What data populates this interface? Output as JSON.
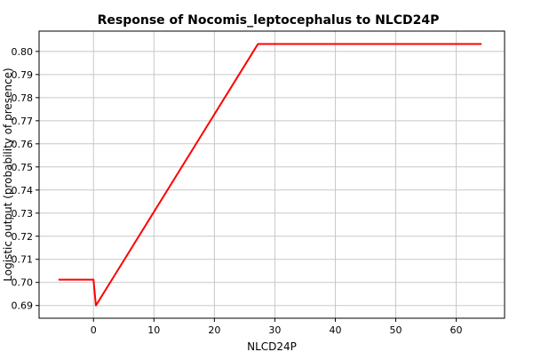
{
  "chart_data": {
    "type": "line",
    "title": "Response of Nocomis_leptocephalus to NLCD24P",
    "xlabel": "NLCD24P",
    "ylabel": "Logistic output (probability of presence)",
    "xlim": [
      -9,
      68
    ],
    "ylim": [
      0.6845,
      0.8088
    ],
    "grid": true,
    "x_ticks": [
      0,
      10,
      20,
      30,
      40,
      50,
      60
    ],
    "y_ticks": [
      0.69,
      0.7,
      0.71,
      0.72,
      0.73,
      0.74,
      0.75,
      0.76,
      0.77,
      0.78,
      0.79,
      0.8
    ],
    "x_tick_labels": [
      "0",
      "10",
      "20",
      "30",
      "40",
      "50",
      "60"
    ],
    "y_tick_labels": [
      "0.69",
      "0.70",
      "0.71",
      "0.72",
      "0.73",
      "0.74",
      "0.75",
      "0.76",
      "0.77",
      "0.78",
      "0.79",
      "0.80"
    ],
    "series": [
      {
        "color": "#ff0000",
        "x": [
          -5.8,
          0,
          0.2,
          0.4,
          27.2,
          64.2
        ],
        "y": [
          0.7012,
          0.7012,
          0.6955,
          0.69,
          0.8032,
          0.8032
        ]
      }
    ]
  }
}
